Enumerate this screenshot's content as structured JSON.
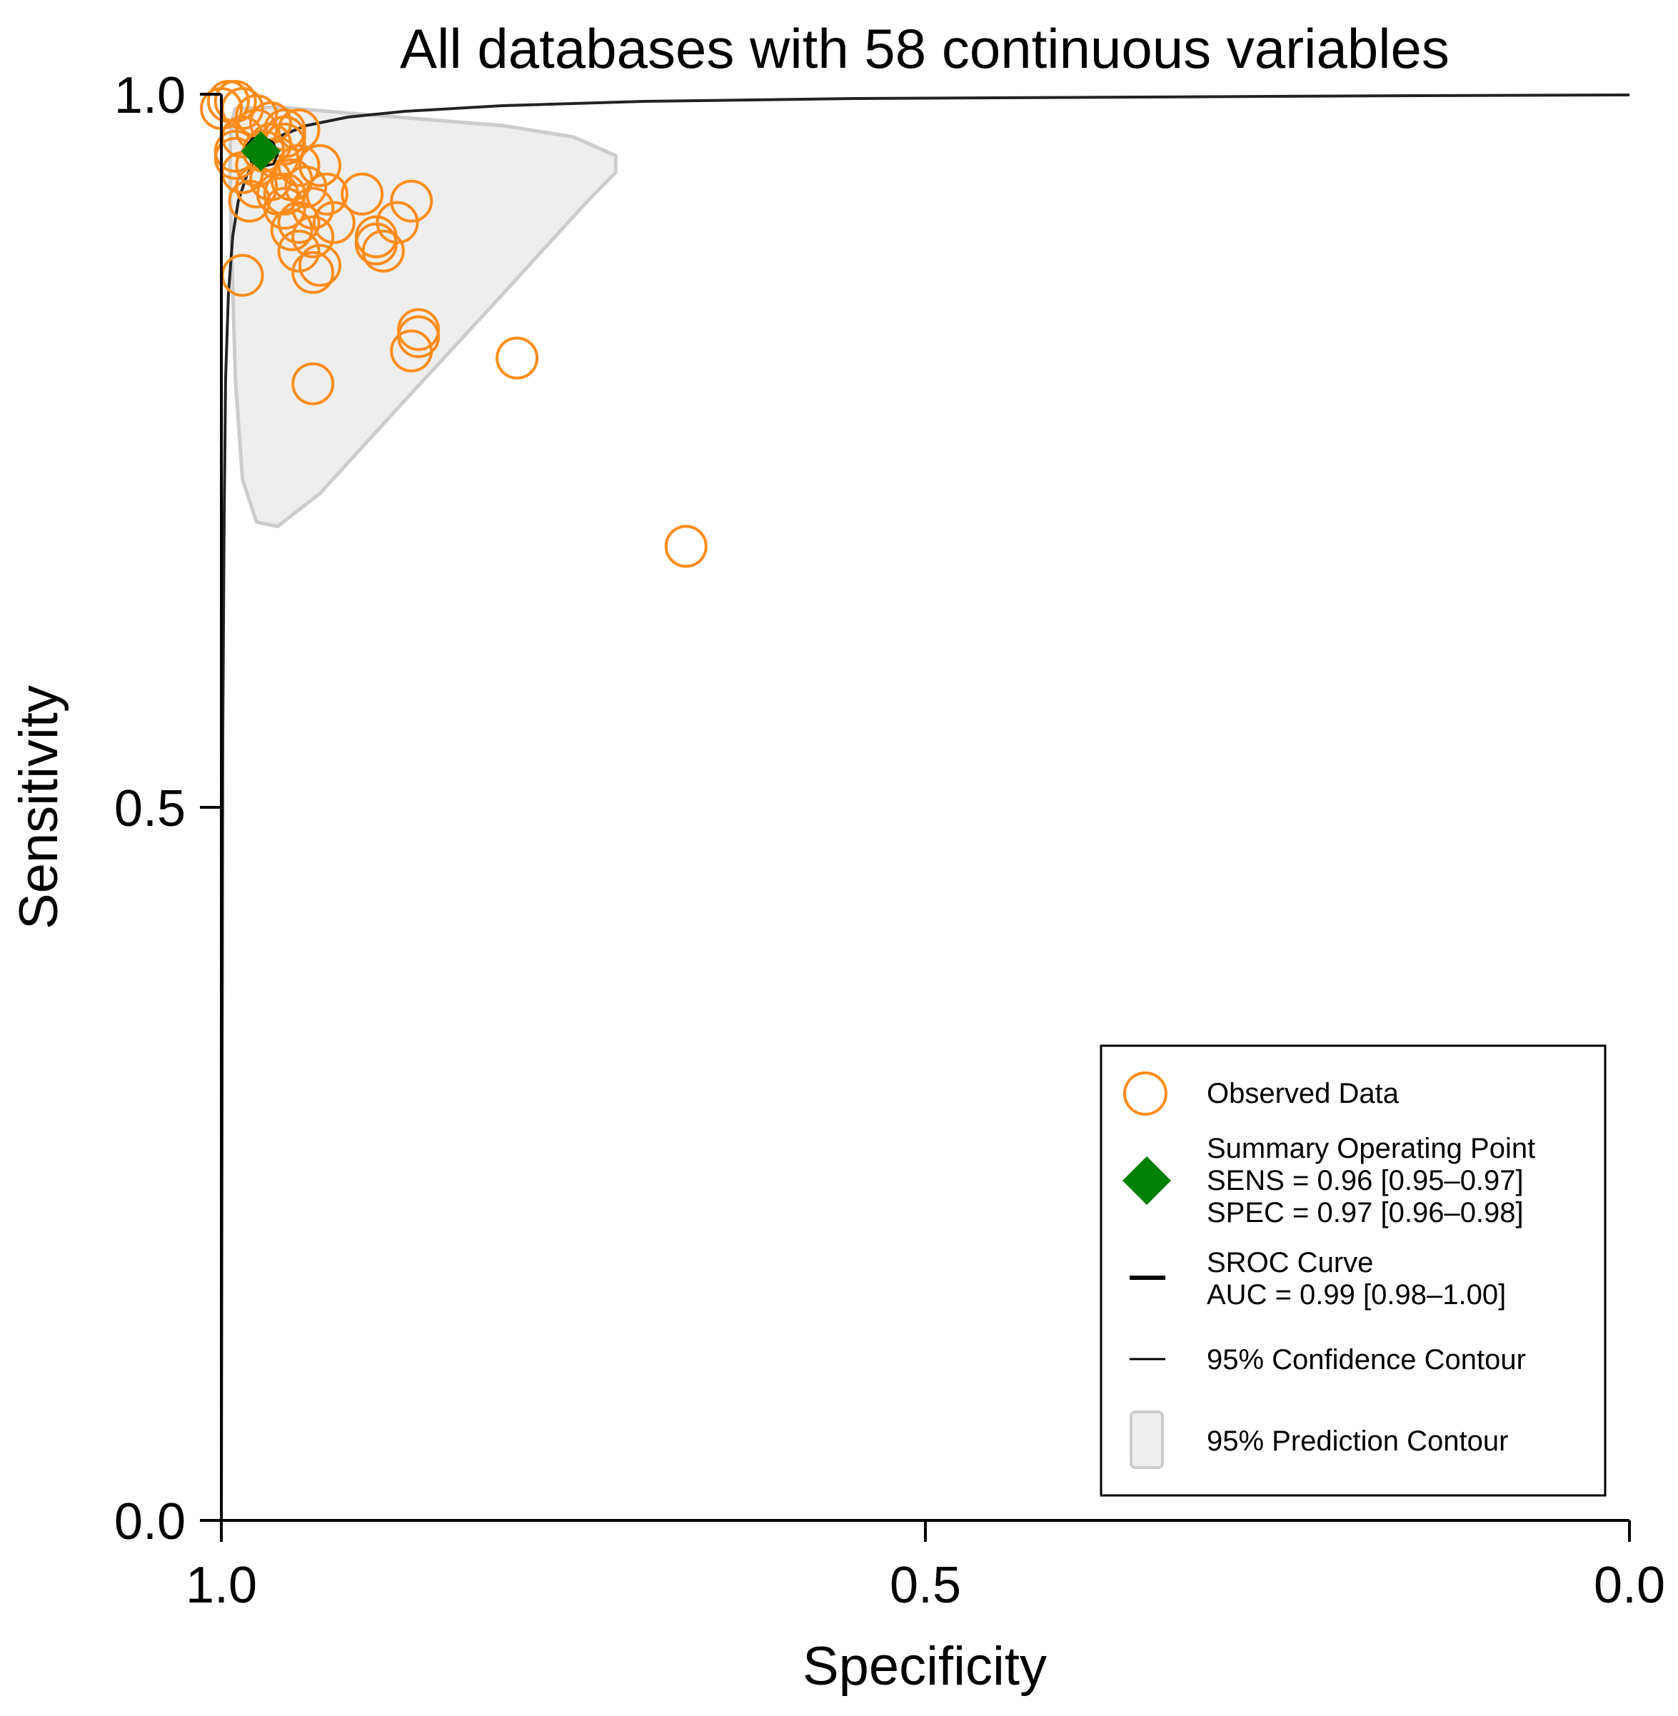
{
  "chart_data": {
    "type": "scatter",
    "title": "All databases with 58 continuous variables",
    "xlabel": "Specificity",
    "ylabel": "Sensitivity",
    "xlim": [
      1.0,
      0.0
    ],
    "ylim": [
      0.0,
      1.0
    ],
    "x_ticks": [
      {
        "value": 1.0,
        "label": "1.0"
      },
      {
        "value": 0.5,
        "label": "0.5"
      },
      {
        "value": 0.0,
        "label": "0.0"
      }
    ],
    "y_ticks": [
      {
        "value": 1.0,
        "label": "1.0"
      },
      {
        "value": 0.5,
        "label": "0.5"
      },
      {
        "value": 0.0,
        "label": "0.0"
      }
    ],
    "grid": false,
    "observed_data": {
      "name": "Observed Data",
      "color": "#ff8c1a",
      "points": [
        {
          "spec": 0.995,
          "sens": 0.995
        },
        {
          "spec": 0.99,
          "sens": 0.995
        },
        {
          "spec": 1.0,
          "sens": 0.99
        },
        {
          "spec": 0.985,
          "sens": 0.99
        },
        {
          "spec": 0.975,
          "sens": 0.985
        },
        {
          "spec": 0.965,
          "sens": 0.98
        },
        {
          "spec": 0.955,
          "sens": 0.975
        },
        {
          "spec": 0.975,
          "sens": 0.975
        },
        {
          "spec": 0.985,
          "sens": 0.97
        },
        {
          "spec": 0.955,
          "sens": 0.97
        },
        {
          "spec": 0.945,
          "sens": 0.975
        },
        {
          "spec": 0.97,
          "sens": 0.96
        },
        {
          "spec": 0.99,
          "sens": 0.96
        },
        {
          "spec": 0.96,
          "sens": 0.955
        },
        {
          "spec": 0.975,
          "sens": 0.95
        },
        {
          "spec": 0.945,
          "sens": 0.95
        },
        {
          "spec": 0.985,
          "sens": 0.945
        },
        {
          "spec": 0.965,
          "sens": 0.94
        },
        {
          "spec": 0.95,
          "sens": 0.94
        },
        {
          "spec": 0.975,
          "sens": 0.935
        },
        {
          "spec": 0.96,
          "sens": 0.93
        },
        {
          "spec": 0.94,
          "sens": 0.935
        },
        {
          "spec": 0.98,
          "sens": 0.925
        },
        {
          "spec": 0.955,
          "sens": 0.92
        },
        {
          "spec": 0.935,
          "sens": 0.92
        },
        {
          "spec": 0.925,
          "sens": 0.93
        },
        {
          "spec": 0.945,
          "sens": 0.91
        },
        {
          "spec": 0.92,
          "sens": 0.91
        },
        {
          "spec": 0.9,
          "sens": 0.93
        },
        {
          "spec": 0.89,
          "sens": 0.9
        },
        {
          "spec": 0.935,
          "sens": 0.9
        },
        {
          "spec": 0.945,
          "sens": 0.89
        },
        {
          "spec": 0.93,
          "sens": 0.88
        },
        {
          "spec": 0.89,
          "sens": 0.895
        },
        {
          "spec": 0.885,
          "sens": 0.89
        },
        {
          "spec": 0.935,
          "sens": 0.875
        },
        {
          "spec": 0.955,
          "sens": 0.93
        },
        {
          "spec": 0.93,
          "sens": 0.95
        },
        {
          "spec": 0.865,
          "sens": 0.925
        },
        {
          "spec": 0.875,
          "sens": 0.91
        },
        {
          "spec": 0.95,
          "sens": 0.905
        },
        {
          "spec": 0.955,
          "sens": 0.965
        },
        {
          "spec": 0.99,
          "sens": 0.955
        },
        {
          "spec": 0.965,
          "sens": 0.965
        },
        {
          "spec": 0.985,
          "sens": 0.873
        },
        {
          "spec": 0.86,
          "sens": 0.835
        },
        {
          "spec": 0.86,
          "sens": 0.83
        },
        {
          "spec": 0.865,
          "sens": 0.82
        },
        {
          "spec": 0.79,
          "sens": 0.815
        },
        {
          "spec": 0.935,
          "sens": 0.797
        },
        {
          "spec": 0.67,
          "sens": 0.683
        }
      ]
    },
    "summary_point": {
      "name": "Summary Operating Point",
      "spec": 0.972,
      "sens": 0.96,
      "color": "#008000",
      "sens_text": "SENS = 0.96 [0.95–0.97]",
      "spec_text": "SPEC = 0.97 [0.96–0.98]"
    },
    "sroc_curve": {
      "name": "SROC Curve",
      "auc_text": "AUC = 0.99 [0.98–1.00]",
      "color": "#222222",
      "points": [
        {
          "spec": 1.0,
          "sens": 0.0
        },
        {
          "spec": 0.9995,
          "sens": 0.3
        },
        {
          "spec": 0.999,
          "sens": 0.55
        },
        {
          "spec": 0.998,
          "sens": 0.7
        },
        {
          "spec": 0.997,
          "sens": 0.8
        },
        {
          "spec": 0.995,
          "sens": 0.86
        },
        {
          "spec": 0.992,
          "sens": 0.9
        },
        {
          "spec": 0.988,
          "sens": 0.925
        },
        {
          "spec": 0.982,
          "sens": 0.943
        },
        {
          "spec": 0.972,
          "sens": 0.96
        },
        {
          "spec": 0.96,
          "sens": 0.97
        },
        {
          "spec": 0.94,
          "sens": 0.978
        },
        {
          "spec": 0.91,
          "sens": 0.984
        },
        {
          "spec": 0.87,
          "sens": 0.988
        },
        {
          "spec": 0.8,
          "sens": 0.992
        },
        {
          "spec": 0.7,
          "sens": 0.995
        },
        {
          "spec": 0.55,
          "sens": 0.997
        },
        {
          "spec": 0.35,
          "sens": 0.998
        },
        {
          "spec": 0.15,
          "sens": 0.999
        },
        {
          "spec": 0.0,
          "sens": 0.9995
        }
      ]
    },
    "confidence_contour": {
      "name": "95% Confidence Contour",
      "color": "#000000",
      "points": [
        {
          "spec": 0.982,
          "sens": 0.964
        },
        {
          "spec": 0.978,
          "sens": 0.969
        },
        {
          "spec": 0.97,
          "sens": 0.97
        },
        {
          "spec": 0.963,
          "sens": 0.966
        },
        {
          "spec": 0.96,
          "sens": 0.958
        },
        {
          "spec": 0.963,
          "sens": 0.951
        },
        {
          "spec": 0.972,
          "sens": 0.949
        },
        {
          "spec": 0.979,
          "sens": 0.953
        },
        {
          "spec": 0.982,
          "sens": 0.964
        }
      ]
    },
    "prediction_contour": {
      "name": "95% Prediction Contour",
      "fill": "#eeeeee",
      "stroke": "#cccccc",
      "points": [
        {
          "spec": 0.99,
          "sens": 0.99
        },
        {
          "spec": 0.96,
          "sens": 0.991
        },
        {
          "spec": 0.9,
          "sens": 0.986
        },
        {
          "spec": 0.8,
          "sens": 0.978
        },
        {
          "spec": 0.75,
          "sens": 0.97
        },
        {
          "spec": 0.72,
          "sens": 0.957
        },
        {
          "spec": 0.72,
          "sens": 0.945
        },
        {
          "spec": 0.74,
          "sens": 0.925
        },
        {
          "spec": 0.8,
          "sens": 0.86
        },
        {
          "spec": 0.87,
          "sens": 0.785
        },
        {
          "spec": 0.93,
          "sens": 0.72
        },
        {
          "spec": 0.96,
          "sens": 0.697
        },
        {
          "spec": 0.975,
          "sens": 0.7
        },
        {
          "spec": 0.985,
          "sens": 0.73
        },
        {
          "spec": 0.99,
          "sens": 0.8
        },
        {
          "spec": 0.993,
          "sens": 0.9
        },
        {
          "spec": 0.994,
          "sens": 0.95
        },
        {
          "spec": 0.993,
          "sens": 0.98
        },
        {
          "spec": 0.99,
          "sens": 0.99
        }
      ]
    },
    "legend": {
      "position": "bottom-right",
      "observed_label": "Observed Data",
      "summary_label": "Summary Operating Point",
      "sens_text": "SENS = 0.96 [0.95–0.97]",
      "spec_text": "SPEC = 0.97 [0.96–0.98]",
      "sroc_label": "SROC Curve",
      "auc_text": "AUC = 0.99 [0.98–1.00]",
      "confidence_label": "95% Confidence Contour",
      "prediction_label": "95% Prediction Contour"
    }
  }
}
